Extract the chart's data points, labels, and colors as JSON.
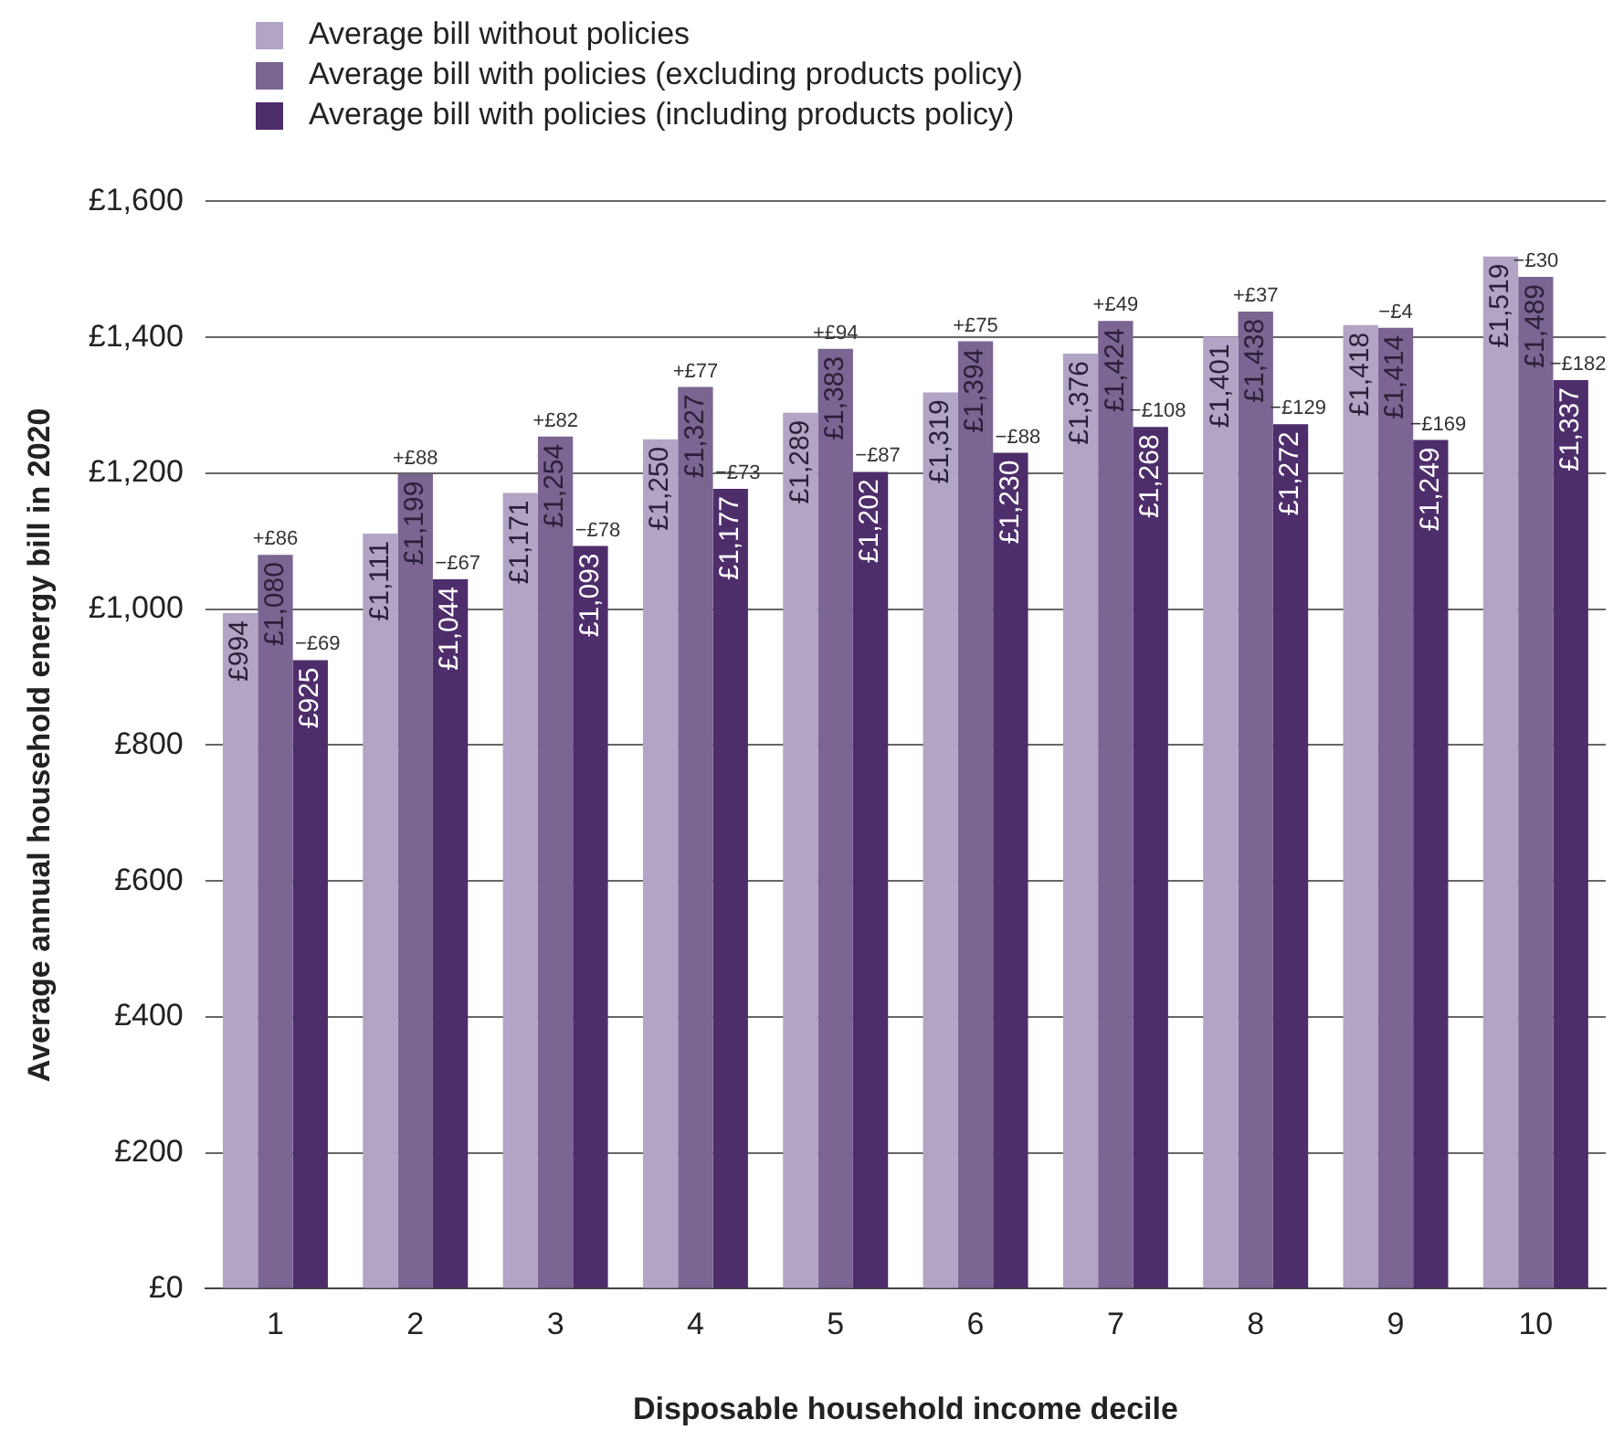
{
  "chart_data": {
    "type": "bar",
    "xlabel": "Disposable household income decile",
    "ylabel": "Average annual household energy bill in 2020",
    "categories": [
      "1",
      "2",
      "3",
      "4",
      "5",
      "6",
      "7",
      "8",
      "9",
      "10"
    ],
    "series": [
      {
        "name": "Average bill without policies",
        "color": "#b1a4c5",
        "values": [
          994,
          1111,
          1171,
          1250,
          1289,
          1319,
          1376,
          1401,
          1418,
          1519
        ],
        "value_labels": [
          "£994",
          "£1,111",
          "£1,171",
          "£1,250",
          "£1,289",
          "£1,319",
          "£1,376",
          "£1,401",
          "£1,418",
          "£1,519"
        ]
      },
      {
        "name": "Average bill with policies (excluding products policy)",
        "color": "#7b6592",
        "values": [
          1080,
          1199,
          1254,
          1327,
          1383,
          1394,
          1424,
          1438,
          1414,
          1489
        ],
        "value_labels": [
          "£1,080",
          "£1,199",
          "£1,254",
          "£1,327",
          "£1,383",
          "£1,394",
          "£1,424",
          "£1,438",
          "£1,414",
          "£1,489"
        ]
      },
      {
        "name": "Average bill with policies (including products policy)",
        "color": "#4e2d6b",
        "values": [
          925,
          1044,
          1093,
          1177,
          1202,
          1230,
          1268,
          1272,
          1249,
          1337
        ],
        "value_labels": [
          "£925",
          "£1,044",
          "£1,093",
          "£1,177",
          "£1,202",
          "£1,230",
          "£1,268",
          "£1,272",
          "£1,249",
          "£1,337"
        ]
      }
    ],
    "ylim": [
      0,
      1600
    ],
    "yticks": [
      {
        "value": 0,
        "label": "£0"
      },
      {
        "value": 200,
        "label": "£200"
      },
      {
        "value": 400,
        "label": "£400"
      },
      {
        "value": 600,
        "label": "£600"
      },
      {
        "value": 800,
        "label": "£800"
      },
      {
        "value": 1000,
        "label": "£1,000"
      },
      {
        "value": 1200,
        "label": "£1,200"
      },
      {
        "value": 1400,
        "label": "£1,400"
      },
      {
        "value": 1600,
        "label": "£1,600"
      }
    ],
    "grid": "y",
    "legend": "top left",
    "annotations": [
      {
        "text": "+£86",
        "x": "1",
        "y": 1080
      },
      "−£69",
      {
        "text": "+£88",
        "x": "2",
        "y": 1199
      },
      "−£67",
      {
        "text": "+£82",
        "x": "3",
        "y": 1254
      },
      "−£78",
      {
        "text": "+£77",
        "x": "4",
        "y": 1327
      },
      "−£73",
      {
        "text": "+£94",
        "x": "5",
        "y": 1383
      },
      "−£87",
      {
        "text": "+£75",
        "x": "6",
        "y": 1394
      },
      "−£88",
      {
        "text": "+£49",
        "x": "7",
        "y": 1424
      },
      "−£108",
      {
        "text": "+£37",
        "x": "8",
        "y": 1438
      },
      "−£129",
      {
        "text": "−£4",
        "x": "9",
        "y": 1414
      },
      "−£169",
      {
        "text": "−£30",
        "x": "10",
        "y": 1489
      },
      "−£182"
    ]
  }
}
